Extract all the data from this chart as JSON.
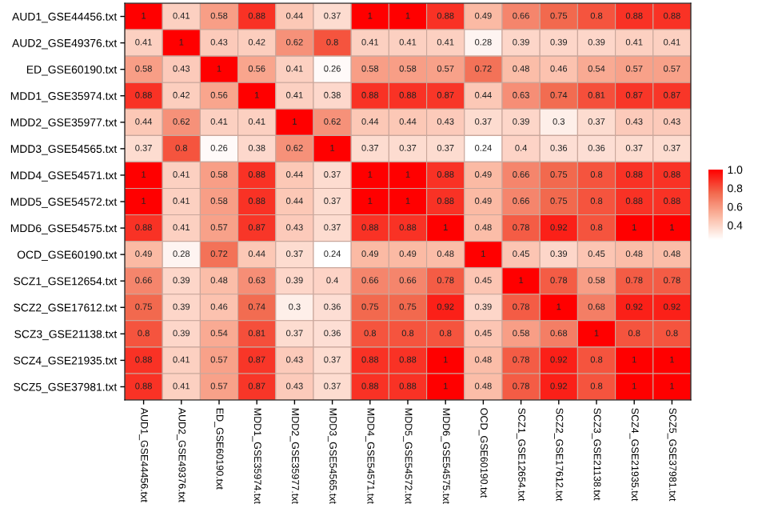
{
  "chart_data": {
    "type": "heatmap",
    "categories": [
      "AUD1_GSE44456.txt",
      "AUD2_GSE49376.txt",
      "ED_GSE60190.txt",
      "MDD1_GSE35974.txt",
      "MDD2_GSE35977.txt",
      "MDD3_GSE54565.txt",
      "MDD4_GSE54571.txt",
      "MDD5_GSE54572.txt",
      "MDD6_GSE54575.txt",
      "OCD_GSE60190.txt",
      "SCZ1_GSE12654.txt",
      "SCZ2_GSE17612.txt",
      "SCZ3_GSE21138.txt",
      "SCZ4_GSE21935.txt",
      "SCZ5_GSE37981.txt"
    ],
    "y_categories": [
      "AUD1_GSE44456.txt",
      "AUD2_GSE49376.txt",
      "ED_GSE60190.txt",
      "MDD1_GSE35974.txt",
      "MDD2_GSE35977.txt",
      "MDD3_GSE54565.txt",
      "MDD4_GSE54571.txt",
      "MDD5_GSE54572.txt",
      "MDD6_GSE54575.txt",
      "OCD_GSE60190.txt",
      "SCZ1_GSE12654.txt",
      "SCZ2_GSE17612.txt",
      "SCZ3_GSE21138.txt",
      "SCZ4_GSE21935.txt",
      "SCZ5_GSE37981.txt"
    ],
    "cells": [
      [
        1,
        0.41,
        0.58,
        0.88,
        0.44,
        0.37,
        1,
        1,
        0.88,
        0.49,
        0.66,
        0.75,
        0.8,
        0.88,
        0.88
      ],
      [
        0.41,
        1,
        0.43,
        0.42,
        0.62,
        0.8,
        0.41,
        0.41,
        0.41,
        0.28,
        0.39,
        0.39,
        0.39,
        0.41,
        0.41
      ],
      [
        0.58,
        0.43,
        1,
        0.56,
        0.41,
        0.26,
        0.58,
        0.58,
        0.57,
        0.72,
        0.48,
        0.46,
        0.54,
        0.57,
        0.57
      ],
      [
        0.88,
        0.42,
        0.56,
        1,
        0.41,
        0.38,
        0.88,
        0.88,
        0.87,
        0.44,
        0.63,
        0.74,
        0.81,
        0.87,
        0.87
      ],
      [
        0.44,
        0.62,
        0.41,
        0.41,
        1,
        0.62,
        0.44,
        0.44,
        0.43,
        0.37,
        0.39,
        0.3,
        0.37,
        0.43,
        0.43
      ],
      [
        0.37,
        0.8,
        0.26,
        0.38,
        0.62,
        1,
        0.37,
        0.37,
        0.37,
        0.24,
        0.4,
        0.36,
        0.36,
        0.37,
        0.37
      ],
      [
        1,
        0.41,
        0.58,
        0.88,
        0.44,
        0.37,
        1,
        1,
        0.88,
        0.49,
        0.66,
        0.75,
        0.8,
        0.88,
        0.88
      ],
      [
        1,
        0.41,
        0.58,
        0.88,
        0.44,
        0.37,
        1,
        1,
        0.88,
        0.49,
        0.66,
        0.75,
        0.8,
        0.88,
        0.88
      ],
      [
        0.88,
        0.41,
        0.57,
        0.87,
        0.43,
        0.37,
        0.88,
        0.88,
        1,
        0.48,
        0.78,
        0.92,
        0.8,
        1,
        1
      ],
      [
        0.49,
        0.28,
        0.72,
        0.44,
        0.37,
        0.24,
        0.49,
        0.49,
        0.48,
        1,
        0.45,
        0.39,
        0.45,
        0.48,
        0.48
      ],
      [
        0.66,
        0.39,
        0.48,
        0.63,
        0.39,
        0.4,
        0.66,
        0.66,
        0.78,
        0.45,
        1,
        0.78,
        0.58,
        0.78,
        0.78
      ],
      [
        0.75,
        0.39,
        0.46,
        0.74,
        0.3,
        0.36,
        0.75,
        0.75,
        0.92,
        0.39,
        0.78,
        1,
        0.68,
        0.92,
        0.92
      ],
      [
        0.8,
        0.39,
        0.54,
        0.81,
        0.37,
        0.36,
        0.8,
        0.8,
        0.8,
        0.45,
        0.58,
        0.68,
        1,
        0.8,
        0.8
      ],
      [
        0.88,
        0.41,
        0.57,
        0.87,
        0.43,
        0.37,
        0.88,
        0.88,
        1,
        0.48,
        0.78,
        0.92,
        0.8,
        1,
        1
      ],
      [
        0.88,
        0.41,
        0.57,
        0.87,
        0.43,
        0.37,
        0.88,
        0.88,
        1,
        0.48,
        0.78,
        0.92,
        0.8,
        1,
        1
      ]
    ],
    "clim": [
      0.24,
      1
    ],
    "cticks": [
      0.4,
      0.6,
      0.8,
      {
        "value": 1,
        "label": "1.0"
      }
    ],
    "data_labels": true
  }
}
